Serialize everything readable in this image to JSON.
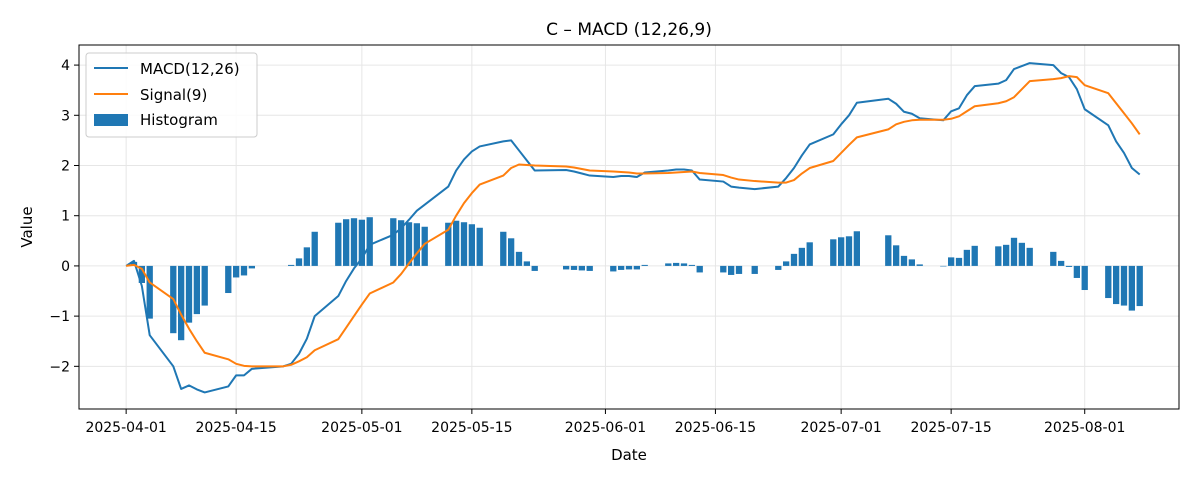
{
  "chart_data": {
    "type": "line",
    "title": "C – MACD (12,26,9)",
    "xlabel": "Date",
    "ylabel": "Value",
    "ylim": [
      -2.85,
      4.4
    ],
    "xlim": [
      "2025-03-26",
      "2025-08-13"
    ],
    "grid": true,
    "legend_position": "top-left",
    "x_ticks": [
      "2025-04-01",
      "2025-04-15",
      "2025-05-01",
      "2025-05-15",
      "2025-06-01",
      "2025-06-15",
      "2025-07-01",
      "2025-07-15",
      "2025-08-01"
    ],
    "y_ticks": [
      -2,
      -1,
      0,
      1,
      2,
      3,
      4
    ],
    "colors": {
      "macd": "#1f77b4",
      "signal": "#ff7f0e",
      "histogram": "#1f77b4"
    },
    "dates": [
      "2025-04-01",
      "2025-04-02",
      "2025-04-03",
      "2025-04-04",
      "2025-04-07",
      "2025-04-08",
      "2025-04-09",
      "2025-04-10",
      "2025-04-11",
      "2025-04-14",
      "2025-04-15",
      "2025-04-16",
      "2025-04-17",
      "2025-04-21",
      "2025-04-22",
      "2025-04-23",
      "2025-04-24",
      "2025-04-25",
      "2025-04-28",
      "2025-04-29",
      "2025-04-30",
      "2025-05-01",
      "2025-05-02",
      "2025-05-05",
      "2025-05-06",
      "2025-05-07",
      "2025-05-08",
      "2025-05-09",
      "2025-05-12",
      "2025-05-13",
      "2025-05-14",
      "2025-05-15",
      "2025-05-16",
      "2025-05-19",
      "2025-05-20",
      "2025-05-21",
      "2025-05-22",
      "2025-05-23",
      "2025-05-27",
      "2025-05-28",
      "2025-05-29",
      "2025-05-30",
      "2025-06-02",
      "2025-06-03",
      "2025-06-04",
      "2025-06-05",
      "2025-06-06",
      "2025-06-09",
      "2025-06-10",
      "2025-06-11",
      "2025-06-12",
      "2025-06-13",
      "2025-06-16",
      "2025-06-17",
      "2025-06-18",
      "2025-06-20",
      "2025-06-23",
      "2025-06-24",
      "2025-06-25",
      "2025-06-26",
      "2025-06-27",
      "2025-06-30",
      "2025-07-01",
      "2025-07-02",
      "2025-07-03",
      "2025-07-07",
      "2025-07-08",
      "2025-07-09",
      "2025-07-10",
      "2025-07-11",
      "2025-07-14",
      "2025-07-15",
      "2025-07-16",
      "2025-07-17",
      "2025-07-18",
      "2025-07-21",
      "2025-07-22",
      "2025-07-23",
      "2025-07-24",
      "2025-07-25",
      "2025-07-28",
      "2025-07-29",
      "2025-07-30",
      "2025-07-31",
      "2025-08-01",
      "2025-08-04",
      "2025-08-05",
      "2025-08-06",
      "2025-08-07",
      "2025-08-08"
    ],
    "series": [
      {
        "name": "MACD(12,26)",
        "type": "line",
        "values": [
          0.0,
          0.1,
          -0.4,
          -1.38,
          -2.0,
          -2.45,
          -2.38,
          -2.46,
          -2.52,
          -2.4,
          -2.18,
          -2.18,
          -2.05,
          -2.0,
          -1.95,
          -1.75,
          -1.45,
          -1.0,
          -0.6,
          -0.3,
          -0.05,
          0.15,
          0.42,
          0.62,
          0.75,
          0.92,
          1.1,
          1.22,
          1.58,
          1.9,
          2.12,
          2.28,
          2.38,
          2.48,
          2.5,
          2.3,
          2.1,
          1.9,
          1.91,
          1.88,
          1.84,
          1.8,
          1.77,
          1.79,
          1.79,
          1.77,
          1.86,
          1.9,
          1.92,
          1.92,
          1.9,
          1.72,
          1.68,
          1.58,
          1.56,
          1.53,
          1.58,
          1.75,
          1.95,
          2.2,
          2.42,
          2.62,
          2.82,
          3.0,
          3.25,
          3.33,
          3.23,
          3.07,
          3.03,
          2.94,
          2.9,
          3.08,
          3.14,
          3.4,
          3.58,
          3.63,
          3.7,
          3.92,
          3.98,
          4.04,
          4.0,
          3.84,
          3.76,
          3.52,
          3.12,
          2.8,
          2.48,
          2.25,
          1.95,
          1.82
        ]
      },
      {
        "name": "Signal(9)",
        "type": "line",
        "values": [
          0.0,
          0.02,
          -0.06,
          -0.33,
          -0.66,
          -0.97,
          -1.25,
          -1.5,
          -1.73,
          -1.86,
          -1.95,
          -1.99,
          -2.0,
          -2.0,
          -1.97,
          -1.9,
          -1.82,
          -1.68,
          -1.46,
          -1.23,
          -1.0,
          -0.77,
          -0.55,
          -0.33,
          -0.16,
          0.05,
          0.25,
          0.44,
          0.72,
          1.0,
          1.25,
          1.45,
          1.62,
          1.8,
          1.95,
          2.02,
          2.01,
          2.0,
          1.98,
          1.96,
          1.93,
          1.9,
          1.88,
          1.87,
          1.86,
          1.84,
          1.84,
          1.85,
          1.86,
          1.87,
          1.88,
          1.85,
          1.81,
          1.76,
          1.72,
          1.69,
          1.66,
          1.66,
          1.71,
          1.84,
          1.95,
          2.09,
          2.25,
          2.41,
          2.56,
          2.72,
          2.82,
          2.87,
          2.9,
          2.91,
          2.91,
          2.93,
          2.98,
          3.08,
          3.18,
          3.24,
          3.28,
          3.36,
          3.52,
          3.68,
          3.72,
          3.74,
          3.78,
          3.76,
          3.6,
          3.44,
          3.24,
          3.04,
          2.84,
          2.62
        ]
      },
      {
        "name": "Histogram",
        "type": "bar",
        "values": [
          0.0,
          0.08,
          -0.34,
          -1.05,
          -1.34,
          -1.48,
          -1.13,
          -0.96,
          -0.79,
          -0.54,
          -0.23,
          -0.19,
          -0.05,
          0.0,
          0.02,
          0.15,
          0.37,
          0.68,
          0.86,
          0.93,
          0.95,
          0.92,
          0.97,
          0.95,
          0.91,
          0.87,
          0.85,
          0.78,
          0.86,
          0.9,
          0.87,
          0.83,
          0.76,
          0.68,
          0.55,
          0.28,
          0.09,
          -0.1,
          -0.07,
          -0.08,
          -0.09,
          -0.1,
          -0.11,
          -0.08,
          -0.07,
          -0.07,
          0.02,
          0.05,
          0.06,
          0.05,
          0.02,
          -0.13,
          -0.13,
          -0.18,
          -0.16,
          -0.16,
          -0.08,
          0.09,
          0.24,
          0.36,
          0.47,
          0.53,
          0.57,
          0.59,
          0.69,
          0.61,
          0.41,
          0.2,
          0.13,
          0.03,
          -0.01,
          0.17,
          0.16,
          0.32,
          0.4,
          0.39,
          0.42,
          0.56,
          0.46,
          0.36,
          0.28,
          0.1,
          -0.02,
          -0.24,
          -0.48,
          -0.64,
          -0.76,
          -0.79,
          -0.89,
          -0.8
        ]
      }
    ]
  }
}
